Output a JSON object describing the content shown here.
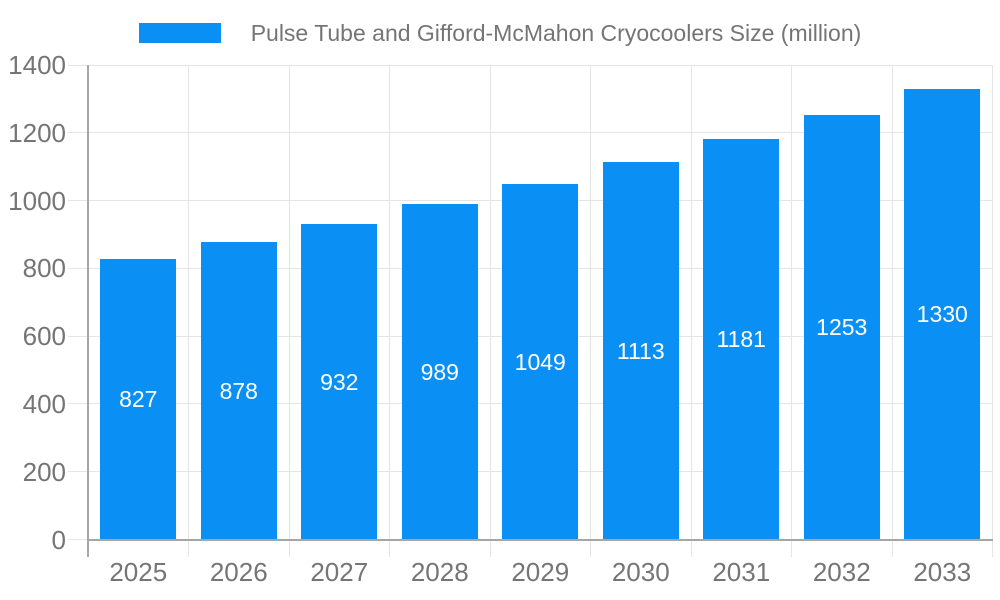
{
  "chart_data": {
    "type": "bar",
    "title": "Pulse Tube and Gifford-McMahon Cryocoolers Size (million)",
    "categories": [
      "2025",
      "2026",
      "2027",
      "2028",
      "2029",
      "2030",
      "2031",
      "2032",
      "2033"
    ],
    "values": [
      827,
      878,
      932,
      989,
      1049,
      1113,
      1181,
      1253,
      1330
    ],
    "xlabel": "",
    "ylabel": "",
    "ylim": [
      0,
      1400
    ],
    "ytick_step": 200,
    "yticks": [
      0,
      200,
      400,
      600,
      800,
      1000,
      1200,
      1400
    ],
    "grid": true,
    "legend_position": "top-center",
    "value_labels": "inside-center",
    "colors": {
      "bar": "#0a90f5",
      "grid": "#e5e5e5",
      "axis": "#a6a6a6",
      "text": "#757575",
      "value_label": "#ffffff",
      "background": "#ffffff"
    }
  }
}
